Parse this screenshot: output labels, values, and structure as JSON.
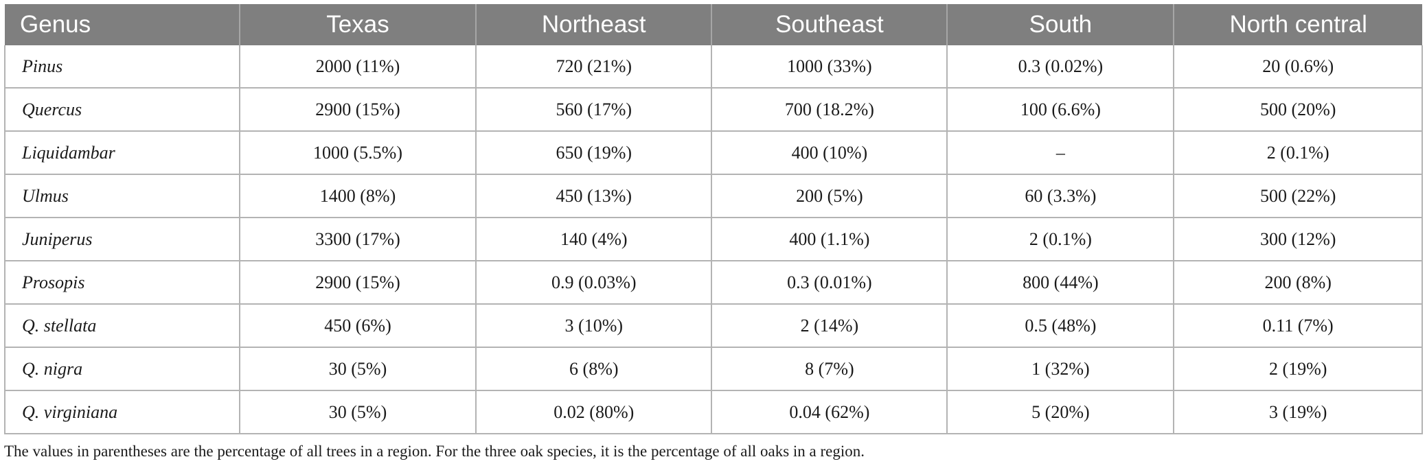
{
  "table": {
    "headers": [
      "Genus",
      "Texas",
      "Northeast",
      "Southeast",
      "South",
      "North central"
    ],
    "rows": [
      [
        "Pinus",
        "2000 (11%)",
        "720 (21%)",
        "1000 (33%)",
        "0.3 (0.02%)",
        "20 (0.6%)"
      ],
      [
        "Quercus",
        "2900 (15%)",
        "560 (17%)",
        "700 (18.2%)",
        "100 (6.6%)",
        "500 (20%)"
      ],
      [
        "Liquidambar",
        "1000 (5.5%)",
        "650 (19%)",
        "400 (10%)",
        "–",
        "2 (0.1%)"
      ],
      [
        "Ulmus",
        "1400 (8%)",
        "450 (13%)",
        "200 (5%)",
        "60 (3.3%)",
        "500 (22%)"
      ],
      [
        "Juniperus",
        "3300 (17%)",
        "140 (4%)",
        "400 (1.1%)",
        "2 (0.1%)",
        "300 (12%)"
      ],
      [
        "Prosopis",
        "2900 (15%)",
        "0.9 (0.03%)",
        "0.3 (0.01%)",
        "800 (44%)",
        "200 (8%)"
      ],
      [
        "Q. stellata",
        "450 (6%)",
        "3 (10%)",
        "2 (14%)",
        "0.5 (48%)",
        "0.11 (7%)"
      ],
      [
        "Q. nigra",
        "30 (5%)",
        "6 (8%)",
        "8 (7%)",
        "1 (32%)",
        "2 (19%)"
      ],
      [
        "Q. virginiana",
        "30 (5%)",
        "0.02 (80%)",
        "0.04 (62%)",
        "5 (20%)",
        "3 (19%)"
      ]
    ]
  },
  "footnote": "The values in parentheses are the percentage of all trees in a region. For the three oak species, it is the percentage of all oaks in a region.",
  "colors": {
    "header_bg": "#7f7f7f",
    "header_text": "#ffffff",
    "grid": "#b3b3b3"
  }
}
